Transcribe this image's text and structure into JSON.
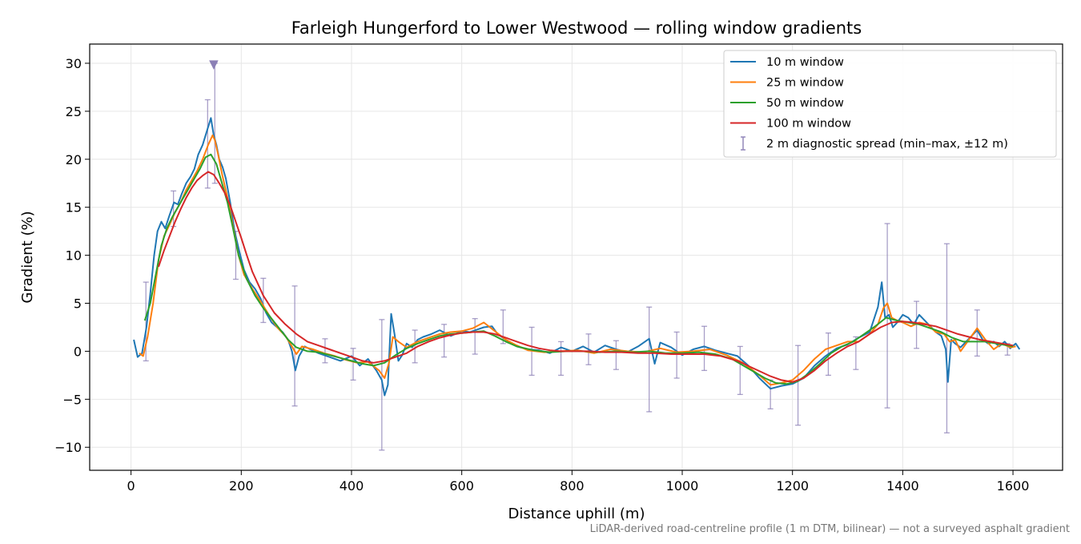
{
  "chart_data": {
    "type": "line",
    "title": "Farleigh Hungerford to Lower Westwood — rolling window gradients",
    "xlabel": "Distance uphill (m)",
    "ylabel": "Gradient (%)",
    "xlim": [
      -75,
      1690
    ],
    "ylim": [
      -12.4,
      32.0
    ],
    "xticks": [
      0,
      200,
      400,
      600,
      800,
      1000,
      1200,
      1400,
      1600
    ],
    "yticks": [
      -10,
      -5,
      0,
      5,
      10,
      15,
      20,
      25,
      30
    ],
    "xtick_labels": [
      "0",
      "200",
      "400",
      "600",
      "800",
      "1000",
      "1200",
      "1400",
      "1600"
    ],
    "ytick_labels": [
      "−10",
      "−5",
      "0",
      "5",
      "10",
      "15",
      "20",
      "25",
      "30"
    ],
    "grid": true,
    "legend_position": "top-right",
    "footnote": "LiDAR-derived road-centreline profile (1 m DTM, bilinear) — not a surveyed asphalt gradient",
    "series": [
      {
        "name": "10 m window",
        "color": "#1f77b4",
        "x": [
          5,
          12,
          20,
          28,
          35,
          42,
          48,
          55,
          62,
          70,
          78,
          85,
          92,
          100,
          108,
          115,
          122,
          130,
          138,
          145,
          150,
          155,
          160,
          166,
          172,
          180,
          188,
          196,
          205,
          215,
          225,
          235,
          245,
          255,
          265,
          275,
          285,
          292,
          298,
          305,
          315,
          325,
          340,
          360,
          380,
          400,
          415,
          430,
          445,
          455,
          460,
          466,
          472,
          478,
          485,
          492,
          500,
          510,
          520,
          530,
          545,
          560,
          580,
          600,
          615,
          625,
          640,
          655,
          665,
          680,
          700,
          720,
          740,
          760,
          780,
          800,
          820,
          840,
          860,
          880,
          900,
          920,
          940,
          950,
          960,
          980,
          1000,
          1020,
          1040,
          1060,
          1080,
          1100,
          1120,
          1140,
          1160,
          1180,
          1200,
          1220,
          1240,
          1260,
          1280,
          1300,
          1320,
          1340,
          1355,
          1362,
          1368,
          1375,
          1382,
          1390,
          1400,
          1410,
          1420,
          1430,
          1440,
          1450,
          1460,
          1470,
          1478,
          1482,
          1488,
          1495,
          1505,
          1515,
          1525,
          1535,
          1545,
          1555,
          1565,
          1575,
          1585,
          1595,
          1605,
          1612
        ],
        "y": [
          1.2,
          -0.6,
          -0.2,
          2.5,
          6.0,
          10.0,
          12.5,
          13.5,
          12.8,
          14.2,
          15.5,
          15.3,
          16.4,
          17.5,
          18.2,
          19.0,
          20.5,
          21.5,
          23.0,
          24.3,
          22.5,
          21.5,
          20.0,
          19.2,
          18.0,
          15.5,
          12.5,
          10.5,
          8.5,
          7.2,
          6.5,
          5.5,
          4.0,
          3.0,
          2.5,
          2.0,
          1.2,
          0.0,
          -2.0,
          -0.5,
          0.5,
          0.2,
          -0.2,
          -0.6,
          -1.0,
          -0.5,
          -1.5,
          -0.8,
          -2.0,
          -3.0,
          -4.6,
          -3.5,
          3.9,
          1.8,
          -1.0,
          -0.4,
          0.8,
          0.4,
          1.2,
          1.5,
          1.8,
          2.2,
          1.6,
          2.1,
          2.0,
          2.2,
          2.5,
          2.6,
          1.8,
          1.2,
          0.5,
          0.2,
          0.1,
          -0.2,
          0.4,
          0.0,
          0.5,
          -0.1,
          0.6,
          0.2,
          -0.1,
          0.5,
          1.3,
          -1.3,
          0.9,
          0.4,
          -0.4,
          0.2,
          0.5,
          0.1,
          -0.2,
          -0.5,
          -1.5,
          -2.8,
          -3.9,
          -3.6,
          -3.4,
          -2.8,
          -1.5,
          -0.5,
          0.3,
          0.7,
          1.4,
          2.0,
          4.6,
          7.2,
          3.5,
          3.8,
          2.5,
          3.0,
          3.8,
          3.5,
          2.8,
          3.8,
          3.2,
          2.6,
          2.0,
          1.6,
          0.2,
          -3.2,
          1.2,
          0.8,
          0.4,
          1.0,
          1.6,
          2.2,
          1.2,
          0.8,
          1.0,
          0.5,
          1.0,
          0.3,
          0.8,
          0.2
        ]
      },
      {
        "name": "25 m window",
        "color": "#ff7f0e",
        "x": [
          15,
          22,
          30,
          40,
          50,
          60,
          70,
          80,
          90,
          100,
          110,
          120,
          130,
          140,
          148,
          152,
          158,
          165,
          175,
          185,
          195,
          205,
          220,
          235,
          250,
          265,
          280,
          292,
          300,
          310,
          330,
          350,
          370,
          390,
          410,
          430,
          450,
          460,
          468,
          475,
          485,
          500,
          520,
          540,
          560,
          580,
          600,
          620,
          640,
          660,
          680,
          700,
          720,
          750,
          780,
          810,
          840,
          870,
          900,
          930,
          960,
          990,
          1020,
          1050,
          1080,
          1110,
          1140,
          1160,
          1180,
          1200,
          1220,
          1240,
          1260,
          1280,
          1300,
          1320,
          1340,
          1355,
          1365,
          1372,
          1380,
          1390,
          1400,
          1415,
          1430,
          1445,
          1460,
          1475,
          1485,
          1495,
          1505,
          1520,
          1535,
          1550,
          1565,
          1580,
          1595,
          1605
        ],
        "y": [
          -0.2,
          -0.5,
          1.5,
          5.0,
          9.5,
          12.0,
          13.2,
          14.5,
          15.5,
          16.8,
          17.8,
          18.8,
          20.0,
          21.5,
          22.5,
          22.0,
          20.5,
          18.5,
          16.0,
          13.0,
          10.0,
          8.0,
          6.5,
          5.2,
          3.8,
          2.5,
          1.6,
          0.5,
          -0.3,
          0.5,
          0.2,
          -0.2,
          -0.5,
          -0.9,
          -1.2,
          -1.1,
          -2.0,
          -2.8,
          -1.2,
          1.5,
          1.0,
          0.4,
          1.0,
          1.4,
          1.8,
          2.0,
          2.1,
          2.4,
          3.0,
          2.1,
          1.2,
          0.6,
          0.1,
          -0.1,
          0.0,
          0.1,
          -0.2,
          0.2,
          0.0,
          -0.1,
          0.3,
          -0.1,
          0.0,
          0.2,
          -0.4,
          -1.2,
          -2.5,
          -3.5,
          -3.3,
          -3.0,
          -2.0,
          -0.8,
          0.2,
          0.6,
          1.0,
          1.0,
          1.8,
          2.8,
          4.5,
          5.0,
          3.5,
          3.2,
          3.0,
          2.6,
          3.0,
          2.8,
          2.0,
          1.8,
          1.0,
          1.2,
          0.0,
          1.2,
          2.4,
          1.2,
          0.2,
          0.8,
          0.4,
          0.5
        ]
      },
      {
        "name": "50 m window",
        "color": "#2ca02c",
        "x": [
          25,
          35,
          45,
          55,
          65,
          75,
          85,
          95,
          105,
          115,
          125,
          135,
          145,
          155,
          165,
          175,
          185,
          195,
          210,
          225,
          240,
          255,
          270,
          285,
          300,
          320,
          340,
          360,
          380,
          400,
          420,
          440,
          460,
          480,
          500,
          520,
          540,
          560,
          580,
          600,
          620,
          640,
          660,
          680,
          700,
          730,
          760,
          790,
          820,
          850,
          880,
          910,
          940,
          970,
          1000,
          1030,
          1060,
          1090,
          1120,
          1150,
          1170,
          1190,
          1210,
          1230,
          1250,
          1270,
          1290,
          1310,
          1330,
          1350,
          1370,
          1390,
          1410,
          1430,
          1450,
          1470,
          1490,
          1510,
          1530,
          1550,
          1570,
          1590,
          1600
        ],
        "y": [
          3.2,
          5.0,
          8.0,
          11.0,
          12.8,
          14.0,
          15.0,
          16.0,
          17.0,
          18.0,
          19.0,
          20.2,
          20.5,
          19.5,
          17.5,
          15.5,
          12.8,
          10.0,
          7.5,
          5.8,
          4.5,
          3.4,
          2.3,
          1.2,
          0.4,
          0.0,
          -0.1,
          -0.4,
          -0.7,
          -1.0,
          -1.3,
          -1.5,
          -1.2,
          -0.4,
          0.3,
          0.8,
          1.2,
          1.6,
          1.8,
          1.9,
          2.0,
          2.1,
          1.6,
          1.0,
          0.5,
          0.1,
          -0.1,
          0.0,
          0.0,
          -0.1,
          0.0,
          -0.1,
          0.0,
          -0.2,
          -0.2,
          -0.1,
          -0.3,
          -0.8,
          -1.8,
          -2.8,
          -3.3,
          -3.4,
          -3.1,
          -2.3,
          -1.3,
          -0.2,
          0.5,
          1.0,
          1.8,
          2.6,
          3.5,
          3.2,
          3.0,
          2.8,
          2.4,
          2.0,
          1.4,
          1.0,
          1.0,
          1.0,
          0.8,
          0.6,
          0.5
        ]
      },
      {
        "name": "100 m window",
        "color": "#d62728",
        "x": [
          50,
          60,
          70,
          80,
          90,
          100,
          110,
          120,
          130,
          140,
          150,
          160,
          170,
          180,
          190,
          200,
          210,
          220,
          240,
          260,
          280,
          300,
          320,
          340,
          360,
          380,
          400,
          420,
          440,
          460,
          480,
          500,
          520,
          540,
          560,
          580,
          600,
          620,
          640,
          660,
          680,
          700,
          720,
          740,
          760,
          780,
          800,
          830,
          860,
          890,
          920,
          950,
          980,
          1010,
          1040,
          1070,
          1100,
          1130,
          1160,
          1180,
          1200,
          1220,
          1240,
          1260,
          1280,
          1300,
          1320,
          1340,
          1360,
          1380,
          1400,
          1420,
          1440,
          1460,
          1480,
          1500,
          1520,
          1540,
          1560,
          1580,
          1600
        ],
        "y": [
          8.8,
          10.5,
          12.0,
          13.5,
          14.8,
          16.0,
          17.0,
          17.8,
          18.3,
          18.7,
          18.4,
          17.5,
          16.5,
          15.2,
          13.5,
          11.8,
          10.0,
          8.3,
          5.8,
          4.0,
          2.8,
          1.8,
          1.0,
          0.6,
          0.2,
          -0.2,
          -0.6,
          -1.0,
          -1.2,
          -1.0,
          -0.6,
          -0.2,
          0.5,
          1.0,
          1.4,
          1.7,
          1.9,
          2.0,
          2.0,
          1.8,
          1.4,
          1.0,
          0.6,
          0.3,
          0.1,
          0.0,
          0.0,
          0.0,
          -0.1,
          -0.1,
          -0.2,
          -0.2,
          -0.3,
          -0.3,
          -0.3,
          -0.5,
          -1.0,
          -1.8,
          -2.6,
          -3.0,
          -3.2,
          -2.8,
          -2.0,
          -1.0,
          -0.2,
          0.5,
          1.0,
          1.8,
          2.5,
          3.0,
          3.1,
          3.0,
          2.8,
          2.6,
          2.2,
          1.8,
          1.5,
          1.2,
          1.0,
          0.8,
          0.6
        ]
      },
      {
        "name": "2 m diagnostic spread (min–max, ±12 m)",
        "color": "#8b7fb5",
        "x": [
          27,
          77,
          139,
          152,
          190,
          240,
          297,
          352,
          403,
          455,
          515,
          568,
          624,
          675,
          727,
          780,
          830,
          880,
          940,
          990,
          1040,
          1105,
          1160,
          1210,
          1265,
          1315,
          1372,
          1425,
          1480,
          1535,
          1590
        ],
        "low": [
          -1.0,
          13.0,
          17.0,
          17.5,
          7.5,
          3.0,
          -5.7,
          -1.2,
          -3.0,
          -10.3,
          -1.2,
          -0.6,
          -0.3,
          0.8,
          -2.5,
          -2.5,
          -1.4,
          -1.9,
          -6.3,
          -2.8,
          -2.0,
          -4.5,
          -6.0,
          -7.7,
          -2.5,
          -1.9,
          -5.9,
          0.3,
          -8.5,
          -0.5,
          -0.4
        ],
        "high": [
          7.2,
          16.7,
          26.2,
          30.0,
          12.5,
          7.6,
          6.8,
          1.3,
          0.3,
          3.3,
          2.2,
          2.8,
          3.4,
          4.3,
          2.5,
          1.0,
          1.8,
          1.1,
          4.6,
          2.0,
          2.6,
          0.5,
          -3.0,
          0.6,
          1.9,
          1.5,
          13.3,
          5.2,
          11.2,
          4.3,
          0.8
        ]
      }
    ],
    "marker": {
      "x": 150,
      "y": 30,
      "symbol": "▼",
      "color": "#8b7fb5"
    }
  }
}
